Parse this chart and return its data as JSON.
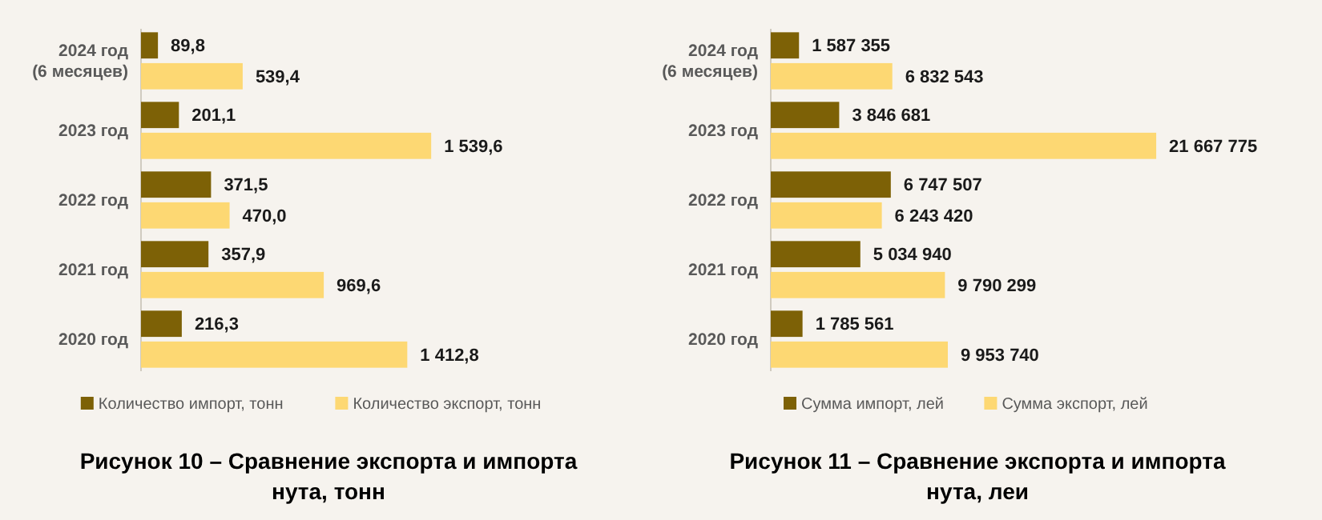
{
  "chart_data": [
    {
      "type": "bar",
      "orientation": "horizontal",
      "title": "Рисунок 10 – Сравнение экспорта и импорта нута, тонн",
      "categories": [
        "2024 год (6 месяцев)",
        "2023 год",
        "2022 год",
        "2021 год",
        "2020 год"
      ],
      "legend": "bottom",
      "series": [
        {
          "name": "Количество импорт, тонн",
          "color": "#7d6106",
          "values": [
            89.8,
            201.1,
            371.5,
            357.9,
            216.3
          ],
          "value_labels": [
            "89,8",
            "201,1",
            "371,5",
            "357,9",
            "216,3"
          ]
        },
        {
          "name": "Количество экспорт, тонн",
          "color": "#fdd873",
          "values": [
            539.4,
            1539.6,
            470.0,
            969.6,
            1412.8
          ],
          "value_labels": [
            "539,4",
            "1 539,6",
            "470,0",
            "969,6",
            "1 412,8"
          ]
        }
      ]
    },
    {
      "type": "bar",
      "orientation": "horizontal",
      "title": "Рисунок 11 – Сравнение экспорта и импорта нута, леи",
      "categories": [
        "2024 год (6 месяцев)",
        "2023 год",
        "2022 год",
        "2021 год",
        "2020 год"
      ],
      "legend": "bottom",
      "series": [
        {
          "name": "Сумма импорт, лей",
          "color": "#7d6106",
          "values": [
            1587355,
            3846681,
            6747507,
            5034940,
            1785561
          ],
          "value_labels": [
            "1 587 355",
            "3 846 681",
            "6 747 507",
            "5 034 940",
            "1 785 561"
          ]
        },
        {
          "name": "Сумма экспорт, лей",
          "color": "#fdd873",
          "values": [
            6832543,
            21667775,
            6243420,
            9790299,
            9953740
          ],
          "value_labels": [
            "6 832 543",
            "21 667 775",
            "6 243 420",
            "9 790 299",
            "9 953 740"
          ]
        }
      ]
    }
  ]
}
